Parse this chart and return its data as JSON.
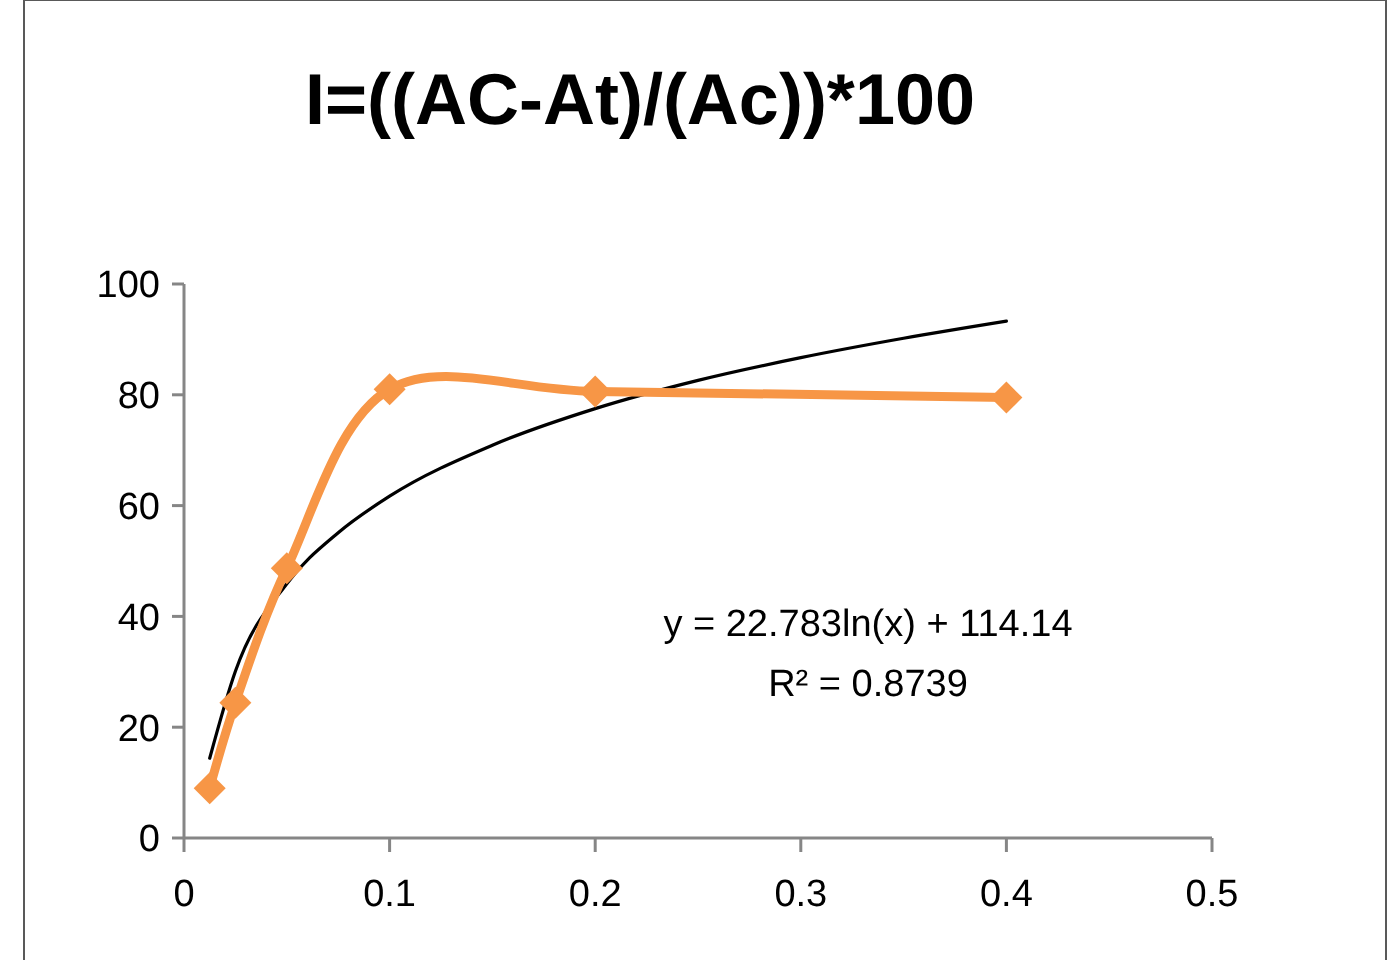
{
  "chart_data": {
    "type": "line",
    "title": "I=((AC-At)/(Ac))*100",
    "xlim": [
      0,
      0.5
    ],
    "xticks": [
      0,
      0.1,
      0.2,
      0.3,
      0.4,
      0.5
    ],
    "ylim": [
      0,
      100
    ],
    "yticks": [
      0,
      20,
      40,
      60,
      80,
      100
    ],
    "grid": false,
    "series": [
      {
        "color": "#f79646",
        "marker": "diamond",
        "x": [
          0.0125,
          0.025,
          0.05,
          0.1,
          0.2,
          0.4
        ],
        "values": [
          9,
          24.4,
          48.7,
          81,
          80.6,
          79.5
        ]
      },
      {
        "color": "#000000",
        "marker": "none",
        "x": [
          0.0125,
          0.025,
          0.05,
          0.075,
          0.1,
          0.15,
          0.2,
          0.25,
          0.3,
          0.35,
          0.4
        ],
        "values": [
          14.4,
          30.1,
          45.9,
          55.1,
          61.7,
          70.9,
          77.5,
          82.6,
          86.7,
          90.2,
          93.3
        ]
      }
    ],
    "annotations": [
      "y = 22.783ln(x) + 114.14",
      "R² = 0.8739"
    ]
  }
}
